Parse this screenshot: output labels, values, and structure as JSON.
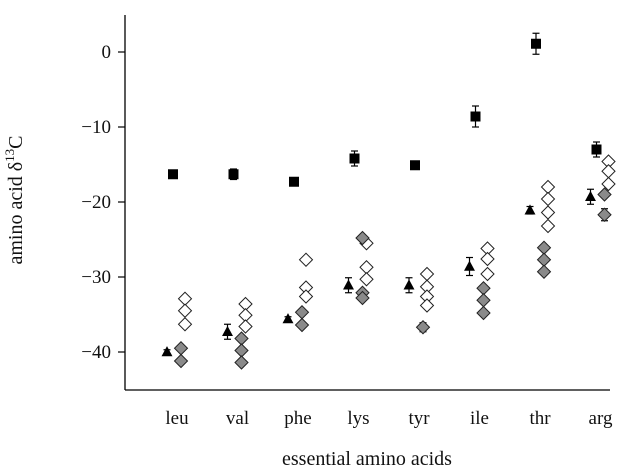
{
  "chart_data": {
    "type": "scatter",
    "title": "",
    "xlabel": "essential amino acids",
    "ylabel_main": "amino acid δ",
    "ylabel_sup": "13",
    "ylabel_tail": "C",
    "categories": [
      "leu",
      "val",
      "phe",
      "lys",
      "tyr",
      "ile",
      "thr",
      "arg"
    ],
    "yticks": [
      0,
      -10,
      -20,
      -30,
      -40
    ],
    "ylim": [
      -45,
      5
    ],
    "grid": false,
    "legend": "none",
    "series": [
      {
        "marker": "square",
        "fill": "#000000",
        "points": [
          {
            "category": "leu",
            "y": -16.3,
            "err": 0.4
          },
          {
            "category": "val",
            "y": -16.3,
            "err": 0.7
          },
          {
            "category": "phe",
            "y": -17.3,
            "err": 0.4
          },
          {
            "category": "lys",
            "y": -14.2,
            "err": 1.0
          },
          {
            "category": "tyr",
            "y": -15.1,
            "err": 0.5
          },
          {
            "category": "ile",
            "y": -8.6,
            "err": 1.4
          },
          {
            "category": "thr",
            "y": 1.1,
            "err": 1.4
          },
          {
            "category": "arg",
            "y": -13.0,
            "err": 1.0
          }
        ]
      },
      {
        "marker": "triangle",
        "fill": "#000000",
        "points": [
          {
            "category": "leu",
            "y": -40.0,
            "err": 0.3
          },
          {
            "category": "val",
            "y": -37.3,
            "err": 1.0
          },
          {
            "category": "phe",
            "y": -35.6,
            "err": 0.3
          },
          {
            "category": "lys",
            "y": -31.1,
            "err": 1.0
          },
          {
            "category": "tyr",
            "y": -31.1,
            "err": 1.0
          },
          {
            "category": "ile",
            "y": -28.6,
            "err": 1.2
          },
          {
            "category": "thr",
            "y": -21.1,
            "err": 0.5
          },
          {
            "category": "arg",
            "y": -19.3,
            "err": 1.0
          }
        ]
      },
      {
        "marker": "diamond",
        "fill": "#ffffff",
        "points": [
          {
            "category": "leu",
            "y": -32.9,
            "err": 0.3
          },
          {
            "category": "leu",
            "y": -34.5,
            "err": 0.3
          },
          {
            "category": "leu",
            "y": -36.3,
            "err": 0.3
          },
          {
            "category": "val",
            "y": -33.6,
            "err": 0.3
          },
          {
            "category": "val",
            "y": -35.1,
            "err": 0.3
          },
          {
            "category": "val",
            "y": -36.6,
            "err": 0.3
          },
          {
            "category": "phe",
            "y": -27.7,
            "err": 0.3
          },
          {
            "category": "phe",
            "y": -31.4,
            "err": 0.3
          },
          {
            "category": "phe",
            "y": -32.6,
            "err": 0.3
          },
          {
            "category": "lys",
            "y": -25.5,
            "err": 0.3
          },
          {
            "category": "lys",
            "y": -28.7,
            "err": 0.3
          },
          {
            "category": "lys",
            "y": -30.3,
            "err": 0.3
          },
          {
            "category": "tyr",
            "y": -29.6,
            "err": 0.3
          },
          {
            "category": "tyr",
            "y": -31.3,
            "err": 0.3
          },
          {
            "category": "tyr",
            "y": -32.6,
            "err": 0.3
          },
          {
            "category": "tyr",
            "y": -33.8,
            "err": 0.3
          },
          {
            "category": "ile",
            "y": -26.2,
            "err": 0.3
          },
          {
            "category": "ile",
            "y": -27.6,
            "err": 0.3
          },
          {
            "category": "ile",
            "y": -29.6,
            "err": 0.3
          },
          {
            "category": "thr",
            "y": -18.0,
            "err": 0.3
          },
          {
            "category": "thr",
            "y": -19.6,
            "err": 0.3
          },
          {
            "category": "thr",
            "y": -21.4,
            "err": 0.3
          },
          {
            "category": "thr",
            "y": -23.2,
            "err": 0.3
          },
          {
            "category": "arg",
            "y": -14.6,
            "err": 0.3
          },
          {
            "category": "arg",
            "y": -15.9,
            "err": 0.3
          },
          {
            "category": "arg",
            "y": -17.6,
            "err": 0.3
          }
        ]
      },
      {
        "marker": "diamond",
        "fill": "#8a8a8a",
        "points": [
          {
            "category": "leu",
            "y": -39.5,
            "err": 0.3
          },
          {
            "category": "leu",
            "y": -41.2,
            "err": 0.3
          },
          {
            "category": "val",
            "y": -38.2,
            "err": 0.3
          },
          {
            "category": "val",
            "y": -39.8,
            "err": 0.3
          },
          {
            "category": "val",
            "y": -41.4,
            "err": 0.3
          },
          {
            "category": "phe",
            "y": -34.7,
            "err": 0.3
          },
          {
            "category": "phe",
            "y": -36.4,
            "err": 0.3
          },
          {
            "category": "lys",
            "y": -24.8,
            "err": 0.3
          },
          {
            "category": "lys",
            "y": -32.1,
            "err": 0.3
          },
          {
            "category": "lys",
            "y": -32.8,
            "err": 0.3
          },
          {
            "category": "tyr",
            "y": -36.7,
            "err": 0.6
          },
          {
            "category": "ile",
            "y": -31.5,
            "err": 0.3
          },
          {
            "category": "ile",
            "y": -33.1,
            "err": 0.3
          },
          {
            "category": "ile",
            "y": -34.8,
            "err": 0.3
          },
          {
            "category": "thr",
            "y": -26.1,
            "err": 0.3
          },
          {
            "category": "thr",
            "y": -27.7,
            "err": 0.3
          },
          {
            "category": "thr",
            "y": -29.3,
            "err": 0.3
          },
          {
            "category": "arg",
            "y": -19.0,
            "err": 0.3
          },
          {
            "category": "arg",
            "y": -21.7,
            "err": 0.8
          }
        ]
      }
    ]
  }
}
